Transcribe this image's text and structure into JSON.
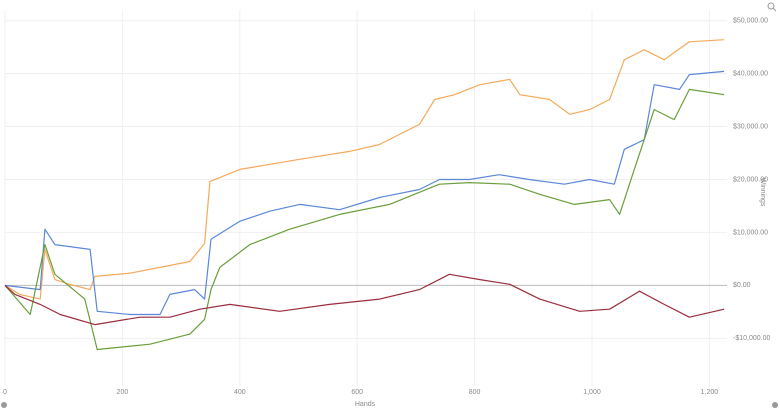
{
  "chart_data": {
    "type": "line",
    "x_label": "Hands",
    "y_label": "Winnings",
    "xlim": [
      0,
      1230
    ],
    "ylim": [
      -19000,
      52000
    ],
    "xticks": [
      0,
      200,
      400,
      600,
      800,
      {
        "value": 1000,
        "label": "1,000"
      },
      {
        "value": 1200,
        "label": "1,200"
      }
    ],
    "yticks": [
      {
        "value": -10000,
        "label": "-$10,000.00"
      },
      {
        "value": 0,
        "label": "$0.00"
      },
      {
        "value": 10000,
        "label": "$10,000.00"
      },
      {
        "value": 20000,
        "label": "$20,000.00"
      },
      {
        "value": 30000,
        "label": "$30,000.00"
      },
      {
        "value": 40000,
        "label": "$40,000.00"
      },
      {
        "value": 50000,
        "label": "$50,000.00"
      }
    ],
    "grid": true,
    "series": [
      {
        "color": "#f5a95b",
        "x": [
          0,
          25,
          60,
          68,
          85,
          110,
          145,
          153,
          213,
          264,
          315,
          340,
          349,
          400,
          502,
          587,
          638,
          706,
          732,
          766,
          809,
          860,
          877,
          928,
          962,
          996,
          1030,
          1055,
          1089,
          1123,
          1166,
          1225
        ],
        "values": [
          0,
          -1700,
          -2600,
          6800,
          1100,
          200,
          -800,
          1700,
          2300,
          3400,
          4500,
          7900,
          19600,
          21900,
          23800,
          25300,
          26600,
          30400,
          35100,
          36000,
          37900,
          38900,
          36000,
          35100,
          32300,
          33200,
          35100,
          42600,
          44500,
          42600,
          46000,
          46400
        ]
      },
      {
        "color": "#5b87d9",
        "x": [
          0,
          60,
          68,
          85,
          145,
          157,
          213,
          264,
          281,
          323,
          340,
          351,
          400,
          451,
          502,
          570,
          638,
          706,
          740,
          791,
          842,
          893,
          953,
          996,
          1038,
          1055,
          1089,
          1106,
          1149,
          1166,
          1225
        ],
        "values": [
          0,
          -800,
          10600,
          7700,
          6800,
          -4900,
          -5500,
          -5500,
          -1700,
          -800,
          -2600,
          8700,
          12100,
          14000,
          15300,
          14300,
          16600,
          18100,
          20000,
          20000,
          20900,
          20000,
          19100,
          20000,
          19100,
          25700,
          27500,
          37900,
          37000,
          39800,
          40400
        ]
      },
      {
        "color": "#6a9e3a",
        "x": [
          0,
          43,
          68,
          85,
          136,
          157,
          247,
          315,
          340,
          351,
          366,
          417,
          485,
          570,
          655,
          740,
          791,
          860,
          911,
          970,
          1030,
          1047,
          1072,
          1106,
          1140,
          1166,
          1225
        ],
        "values": [
          0,
          -5500,
          7700,
          2100,
          -2600,
          -12100,
          -11100,
          -9200,
          -6400,
          -800,
          3400,
          7700,
          10600,
          13400,
          15300,
          19100,
          19400,
          19100,
          17200,
          15300,
          16200,
          13400,
          21900,
          33200,
          31300,
          37000,
          36000
        ]
      },
      {
        "color": "#9b2c3c",
        "x": [
          0,
          17,
          60,
          94,
          153,
          230,
          281,
          332,
          383,
          468,
          553,
          638,
          706,
          757,
          809,
          860,
          911,
          979,
          1030,
          1081,
          1123,
          1166,
          1225
        ],
        "values": [
          0,
          -1700,
          -3600,
          -5500,
          -7400,
          -6000,
          -6000,
          -4500,
          -3600,
          -4900,
          -3600,
          -2600,
          -800,
          2100,
          1100,
          200,
          -2600,
          -4900,
          -4500,
          -1100,
          -3600,
          -6000,
          -4500
        ]
      }
    ]
  }
}
